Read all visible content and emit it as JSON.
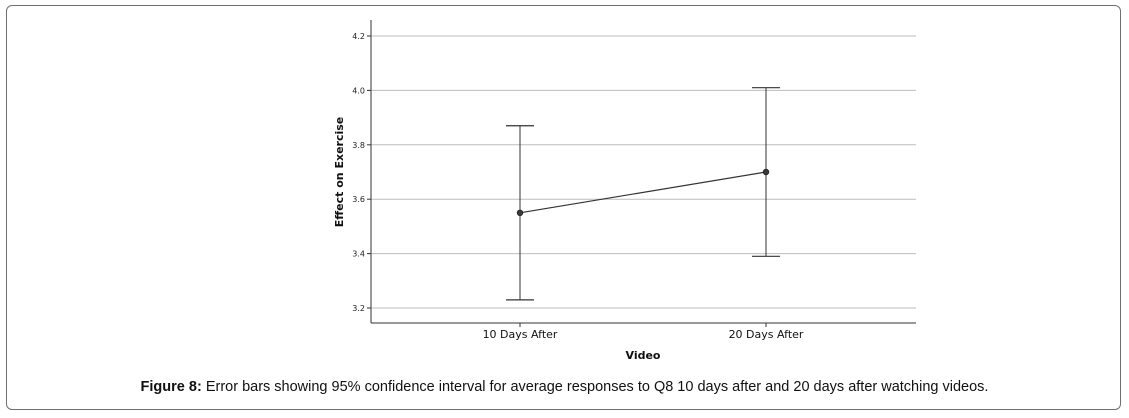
{
  "chart_data": {
    "type": "line",
    "error_bars": "95% confidence interval",
    "categories": [
      "10 Days After",
      "20 Days After"
    ],
    "series": [
      {
        "values": [
          3.55,
          3.7
        ],
        "ci_lower": [
          3.23,
          3.39
        ],
        "ci_upper": [
          3.87,
          4.01
        ]
      }
    ],
    "xlabel": "Video",
    "ylabel": "Effect on Exercise",
    "ylim": [
      3.15,
      4.25
    ],
    "yticks": [
      "3.2",
      "3.4",
      "3.6",
      "3.8",
      "4.0",
      "4.2"
    ],
    "grid": true,
    "colors": {
      "line": "#333333",
      "grid": "#bdbdbd",
      "axis": "#333333"
    }
  },
  "caption": {
    "label": "Figure 8:",
    "text": "Error bars showing 95% confidence interval for average responses to Q8 10 days after and 20 days after watching videos."
  }
}
